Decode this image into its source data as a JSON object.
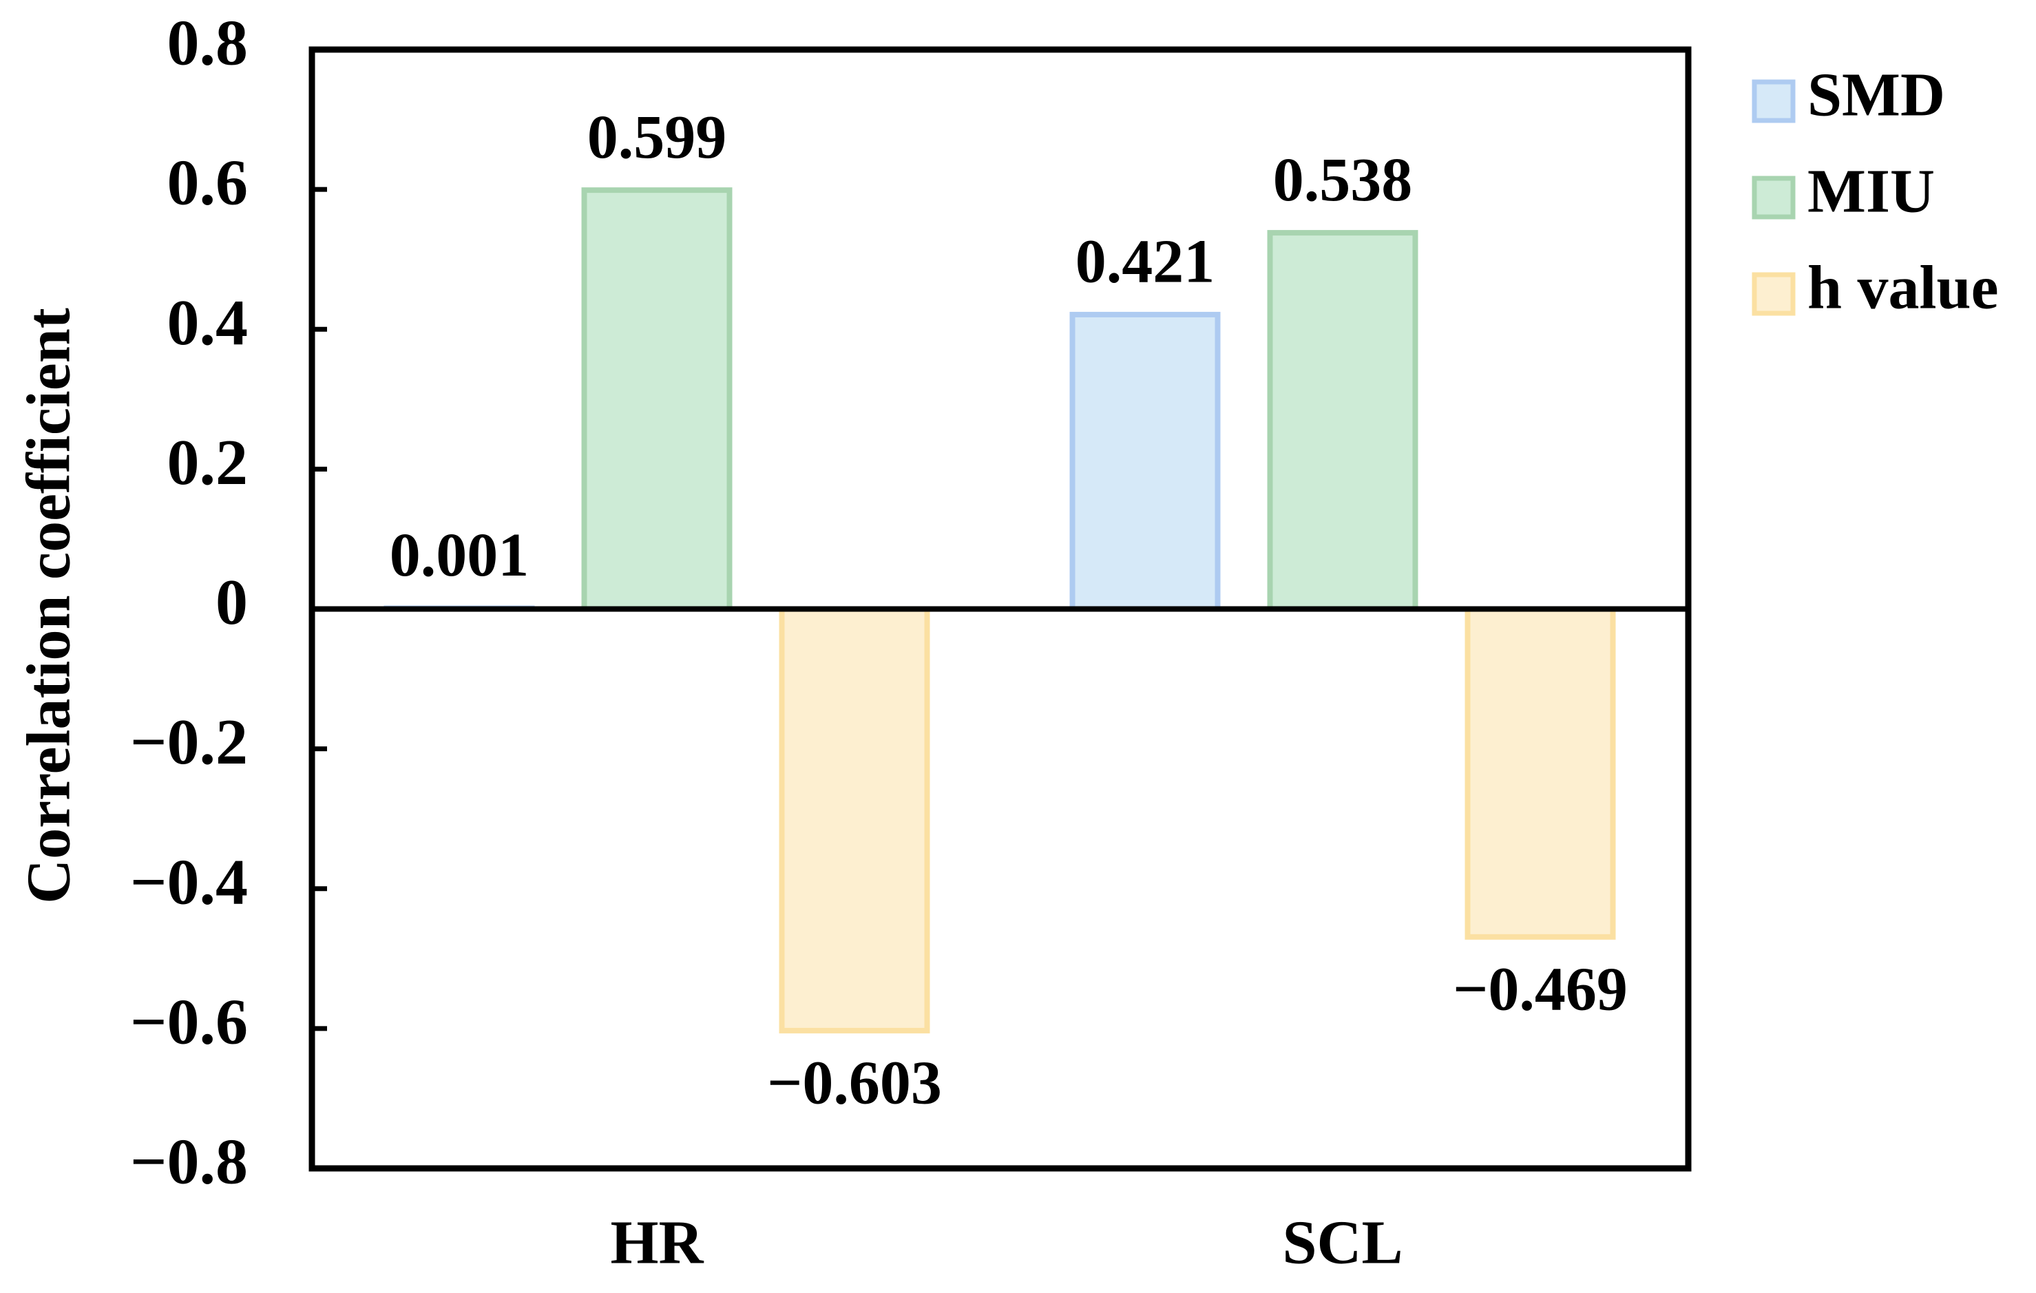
{
  "chart_data": {
    "type": "bar",
    "y_label": "Correlation coefficient",
    "categories": [
      "HR",
      "SCL"
    ],
    "series": [
      {
        "name": "SMD",
        "color": "#d6e9f8",
        "edge": "#aecbf1",
        "values": [
          0.001,
          0.421
        ]
      },
      {
        "name": "MIU",
        "color": "#cdebd6",
        "edge": "#a8d4b0",
        "values": [
          0.599,
          0.538
        ]
      },
      {
        "name": "h value",
        "color": "#fdefd0",
        "edge": "#fbe0a2",
        "values": [
          -0.603,
          -0.469
        ],
        "value_labels": [
          "−0.603",
          "−0.469"
        ]
      }
    ],
    "ylim": [
      -0.8,
      0.8
    ],
    "yticks": [
      {
        "value": -0.8,
        "label": "−0.8"
      },
      {
        "value": -0.6,
        "label": "−0.6"
      },
      {
        "value": -0.4,
        "label": "−0.4"
      },
      {
        "value": -0.2,
        "label": "−0.2"
      },
      0,
      0.2,
      0.4,
      0.6,
      0.8
    ],
    "legend": "right"
  }
}
